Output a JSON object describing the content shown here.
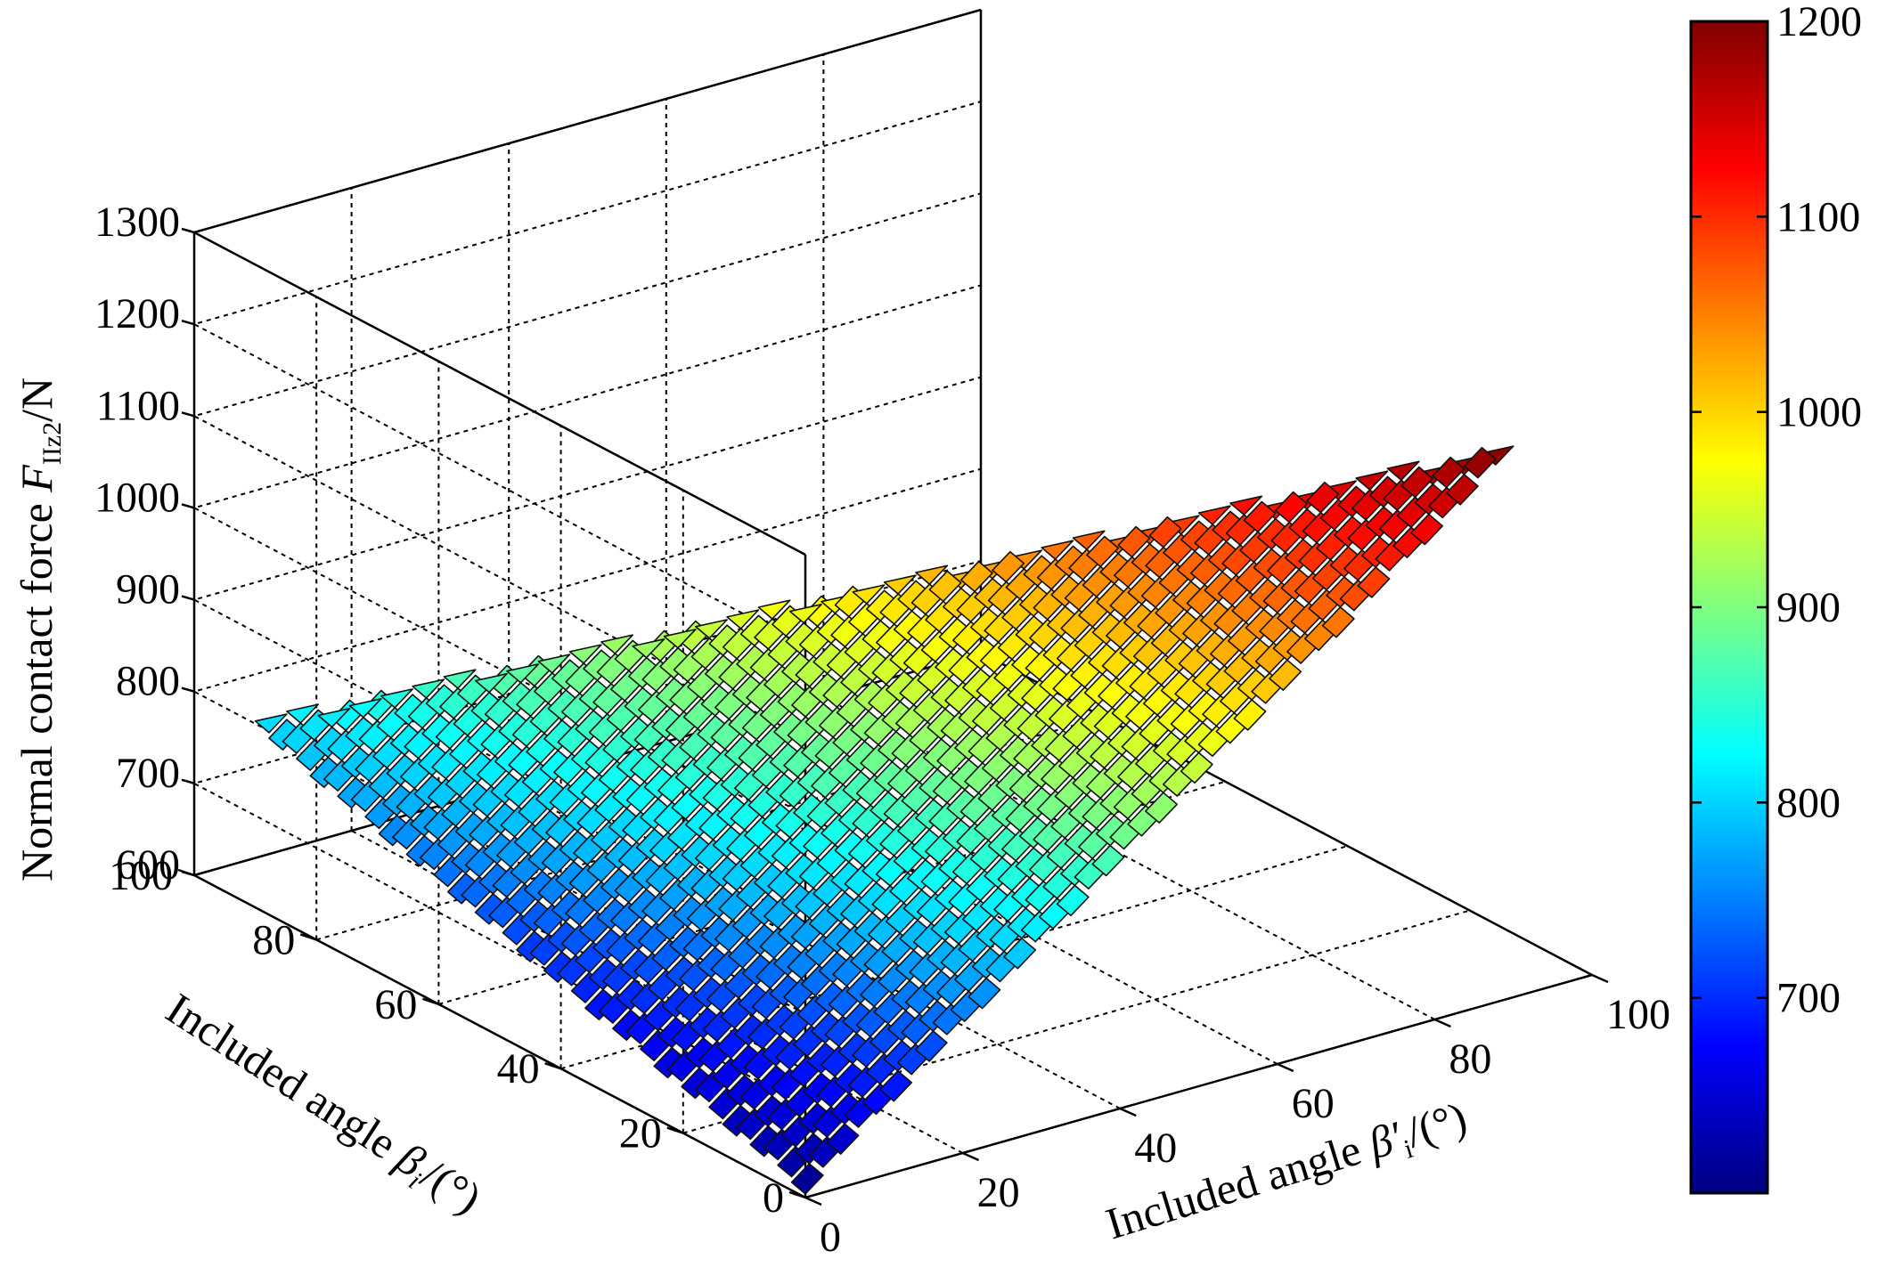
{
  "chart_data": {
    "type": "surface",
    "title": "",
    "x_axis": {
      "label_prefix": "Included angle",
      "label_symbol": "β",
      "label_subscript": "i",
      "label_suffix": "/(°)",
      "range": [
        0,
        100
      ],
      "ticks": [
        0,
        20,
        40,
        60,
        80,
        100
      ]
    },
    "y_axis": {
      "label_prefix": "Included angle",
      "label_symbol": "β′",
      "label_subscript": "i",
      "label_suffix": "/(°)",
      "range": [
        0,
        100
      ],
      "ticks": [
        0,
        20,
        40,
        60,
        80,
        100
      ]
    },
    "z_axis": {
      "label_prefix": "Normal contact force",
      "label_symbol": "F",
      "label_subscript": "IIz2",
      "label_suffix": "/N",
      "range": [
        600,
        1300
      ],
      "ticks": [
        600,
        700,
        800,
        900,
        1000,
        1100,
        1200,
        1300
      ]
    },
    "colorbar": {
      "colormap": "jet",
      "range": [
        600,
        1200
      ],
      "ticks": [
        700,
        800,
        900,
        1000,
        1100,
        1200
      ]
    },
    "surface": {
      "domain": "triangle",
      "vertices": [
        {
          "beta_i": 0,
          "beta_i_prime": 0,
          "force": 610
        },
        {
          "beta_i": 90,
          "beta_i_prime": 0,
          "force": 800
        },
        {
          "beta_i": 0,
          "beta_i_prime": 90,
          "force": 1200
        }
      ],
      "grid_steps": 40
    },
    "grid": true,
    "legend": "none"
  }
}
